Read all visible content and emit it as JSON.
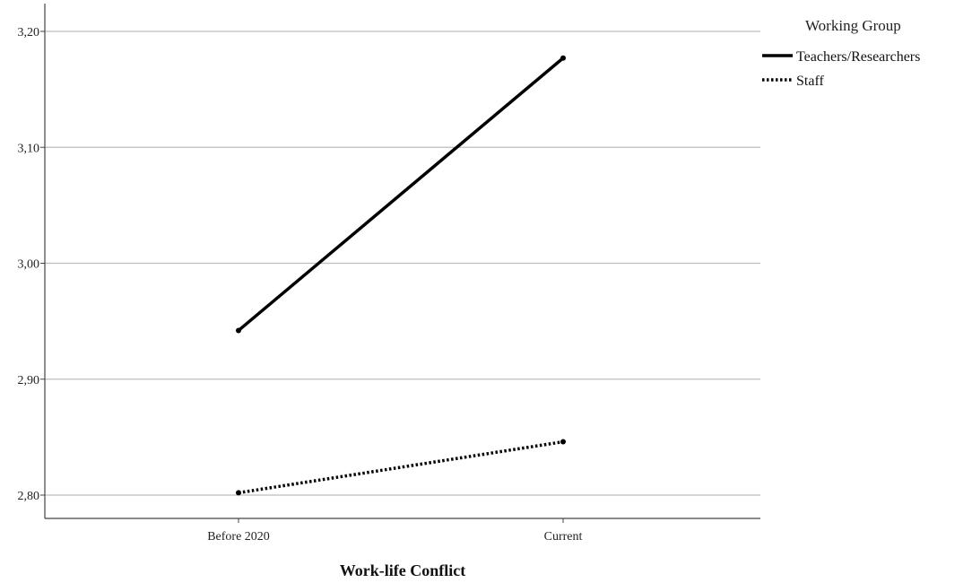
{
  "chart_data": {
    "type": "line",
    "categories": [
      "Before 2020",
      "Current"
    ],
    "series": [
      {
        "name": "Teachers/Researchers",
        "values": [
          2.942,
          3.177
        ],
        "style": "solid",
        "color": "#000000"
      },
      {
        "name": "Staff",
        "values": [
          2.802,
          2.846
        ],
        "style": "dotted",
        "color": "#000000"
      }
    ],
    "title": "",
    "xlabel": "Work-life Conflict",
    "ylabel": "",
    "ylim": [
      2.77,
      3.21
    ],
    "yticks": [
      "2,80",
      "2,90",
      "3,00",
      "3,10",
      "3,20"
    ],
    "ytick_values": [
      2.8,
      2.9,
      3.0,
      3.1,
      3.2
    ],
    "grid": "horizontal",
    "legend": {
      "title": "Working Group",
      "placement": "top-right outside"
    }
  },
  "colors": {
    "grid": "#bdbdbd",
    "axis": "#444444",
    "line": "#000000"
  }
}
